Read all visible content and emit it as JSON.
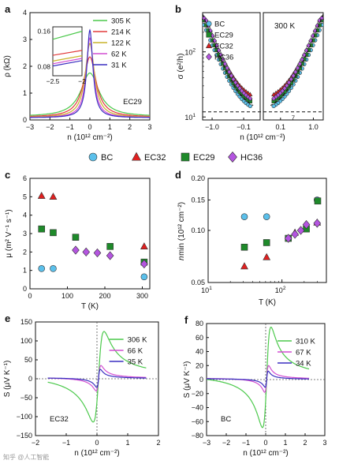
{
  "watermark": "知乎 @人工智能",
  "chart_data": [
    {
      "panel": "a",
      "type": "line",
      "xlabel": "n (10¹² cm⁻²)",
      "ylabel": "ρ (kΩ)",
      "xlim": [
        -3,
        3
      ],
      "ylim": [
        0,
        4
      ],
      "xticks": [
        -3,
        -2,
        -1,
        0,
        1,
        2,
        3
      ],
      "yticks": [
        0,
        1,
        2,
        3,
        4
      ],
      "annotation": "EC29",
      "legend_position": "top-right",
      "series": [
        {
          "name": "305 K",
          "color": "#4cc94c",
          "peak": 1.75,
          "width": 0.55,
          "floor": 0.12
        },
        {
          "name": "214 K",
          "color": "#e23b3b",
          "peak": 2.35,
          "width": 0.38,
          "floor": 0.1
        },
        {
          "name": "122 K",
          "color": "#c8b42a",
          "peak": 2.85,
          "width": 0.28,
          "floor": 0.09
        },
        {
          "name": "62 K",
          "color": "#d24fd2",
          "peak": 3.05,
          "width": 0.22,
          "floor": 0.085
        },
        {
          "name": "31 K",
          "color": "#3a2fc0",
          "peak": 3.35,
          "width": 0.18,
          "floor": 0.08
        }
      ],
      "inset": {
        "xlim": [
          -2.5,
          -2.0
        ],
        "ylim": [
          0.06,
          0.17
        ],
        "xticks": [
          -2.5,
          -2.0
        ],
        "yticks": [
          0.08,
          0.16
        ],
        "series_ends": [
          [
            0.142,
            0.16
          ],
          [
            0.106,
            0.117
          ],
          [
            0.093,
            0.105
          ],
          [
            0.087,
            0.099
          ],
          [
            0.082,
            0.094
          ]
        ]
      }
    },
    {
      "panel": "b",
      "type": "scatter",
      "xlabel": "n (10¹² cm⁻²)",
      "ylabel": "σ (e²/h)",
      "yscale": "log",
      "ylim": [
        9,
        400
      ],
      "yticks": [
        10,
        100
      ],
      "left_xticks": [
        -1.0,
        -0.1
      ],
      "right_xticks": [
        0.1,
        1.0
      ],
      "annotation": "300 K",
      "dashed_line_y": 12,
      "dashed_line_label": "7",
      "legend_position": "top-left",
      "series": [
        {
          "name": "BC",
          "color": "#5bc0eb",
          "marker": "circle",
          "min": 11,
          "slope": 0.85
        },
        {
          "name": "EC29",
          "color": "#1e8a2a",
          "marker": "square",
          "min": 13,
          "slope": 0.9
        },
        {
          "name": "EC32",
          "color": "#e02020",
          "marker": "triangle",
          "min": 17,
          "slope": 0.95
        },
        {
          "name": "HC36",
          "color": "#b455e0",
          "marker": "diamond",
          "min": 14,
          "slope": 0.88
        }
      ]
    },
    {
      "panel": "c",
      "type": "scatter",
      "xlabel": "T (K)",
      "ylabel": "μ (m² V⁻¹ s⁻¹)",
      "xlim": [
        0,
        320
      ],
      "ylim": [
        0,
        6
      ],
      "xticks": [
        0,
        100,
        200,
        300
      ],
      "yticks": [
        0,
        1,
        2,
        3,
        4,
        5,
        6
      ],
      "series": [
        {
          "name": "BC",
          "color": "#5bc0eb",
          "marker": "circle",
          "points": [
            [
              31,
              1.1
            ],
            [
              62,
              1.1
            ],
            [
              305,
              0.65
            ]
          ]
        },
        {
          "name": "EC32",
          "color": "#e02020",
          "marker": "triangle",
          "points": [
            [
              31,
              5.05
            ],
            [
              62,
              5.0
            ],
            [
              305,
              2.3
            ]
          ]
        },
        {
          "name": "EC29",
          "color": "#1e8a2a",
          "marker": "square",
          "points": [
            [
              31,
              3.25
            ],
            [
              62,
              3.05
            ],
            [
              122,
              2.8
            ],
            [
              214,
              2.3
            ],
            [
              305,
              1.45
            ]
          ]
        },
        {
          "name": "HC36",
          "color": "#b455e0",
          "marker": "diamond",
          "points": [
            [
              122,
              2.1
            ],
            [
              150,
              2.0
            ],
            [
              180,
              1.95
            ],
            [
              214,
              1.8
            ],
            [
              305,
              1.35
            ]
          ]
        }
      ]
    },
    {
      "panel": "d",
      "type": "scatter",
      "xlabel": "T (K)",
      "ylabel": "n_min (10¹² cm⁻²)",
      "xscale": "log",
      "yscale": "log",
      "xlim": [
        10,
        400
      ],
      "ylim": [
        0.05,
        0.2
      ],
      "xticks": [
        10,
        100
      ],
      "yticks": [
        0.05,
        0.1,
        0.15,
        0.2
      ],
      "series": [
        {
          "name": "BC",
          "color": "#5bc0eb",
          "marker": "circle",
          "points": [
            [
              31,
              0.12
            ],
            [
              62,
              0.12
            ],
            [
              300,
              0.15
            ]
          ]
        },
        {
          "name": "EC32",
          "color": "#e02020",
          "marker": "triangle",
          "points": [
            [
              31,
              0.062
            ],
            [
              62,
              0.07
            ],
            [
              150,
              0.097
            ],
            [
              300,
              0.111
            ]
          ]
        },
        {
          "name": "EC29",
          "color": "#1e8a2a",
          "marker": "square",
          "points": [
            [
              31,
              0.08
            ],
            [
              62,
              0.085
            ],
            [
              122,
              0.09
            ],
            [
              214,
              0.102
            ],
            [
              305,
              0.148
            ]
          ]
        },
        {
          "name": "HC36",
          "color": "#b455e0",
          "marker": "diamond",
          "points": [
            [
              122,
              0.09
            ],
            [
              150,
              0.095
            ],
            [
              180,
              0.1
            ],
            [
              214,
              0.108
            ],
            [
              300,
              0.11
            ]
          ]
        }
      ]
    },
    {
      "panel": "e",
      "type": "line",
      "xlabel": "n (10¹² cm⁻²)",
      "ylabel": "S (μV K⁻¹)",
      "xlim": [
        -2,
        2
      ],
      "ylim": [
        -150,
        150
      ],
      "xticks": [
        -2,
        -1,
        0,
        1,
        2
      ],
      "yticks": [
        -150,
        -100,
        -50,
        0,
        50,
        100,
        150
      ],
      "annotation": "EC32",
      "legend_position": "top-right",
      "x_range": [
        -1.6,
        1.6
      ],
      "series": [
        {
          "name": "306 K",
          "color": "#4cc94c",
          "amp": 125,
          "width": 0.18
        },
        {
          "name": "66 K",
          "color": "#d24fd2",
          "amp": 35,
          "width": 0.08
        },
        {
          "name": "35 K",
          "color": "#3a2fc0",
          "amp": 25,
          "width": 0.06
        }
      ]
    },
    {
      "panel": "f",
      "type": "line",
      "xlabel": "n (10¹² cm⁻²)",
      "ylabel": "S (μV K⁻¹)",
      "xlim": [
        -3,
        3
      ],
      "ylim": [
        -80,
        80
      ],
      "xticks": [
        -3,
        -2,
        -1,
        0,
        1,
        2,
        3
      ],
      "yticks": [
        -80,
        -60,
        -40,
        -20,
        0,
        20,
        40,
        60,
        80
      ],
      "annotation": "BC",
      "legend_position": "top-right",
      "x_range": [
        -3,
        2.2
      ],
      "series": [
        {
          "name": "310 K",
          "color": "#4cc94c",
          "amp": 75,
          "width": 0.22
        },
        {
          "name": "67 K",
          "color": "#d24fd2",
          "amp": 20,
          "width": 0.1
        },
        {
          "name": "34 K",
          "color": "#3a2fc0",
          "amp": 12,
          "width": 0.08
        }
      ]
    }
  ],
  "legend_row": [
    {
      "name": "BC",
      "color": "#5bc0eb",
      "marker": "circle"
    },
    {
      "name": "EC32",
      "color": "#e02020",
      "marker": "triangle"
    },
    {
      "name": "EC29",
      "color": "#1e8a2a",
      "marker": "square"
    },
    {
      "name": "HC36",
      "color": "#b455e0",
      "marker": "diamond"
    }
  ],
  "panel_letters": [
    "a",
    "b",
    "c",
    "d",
    "e",
    "f"
  ]
}
